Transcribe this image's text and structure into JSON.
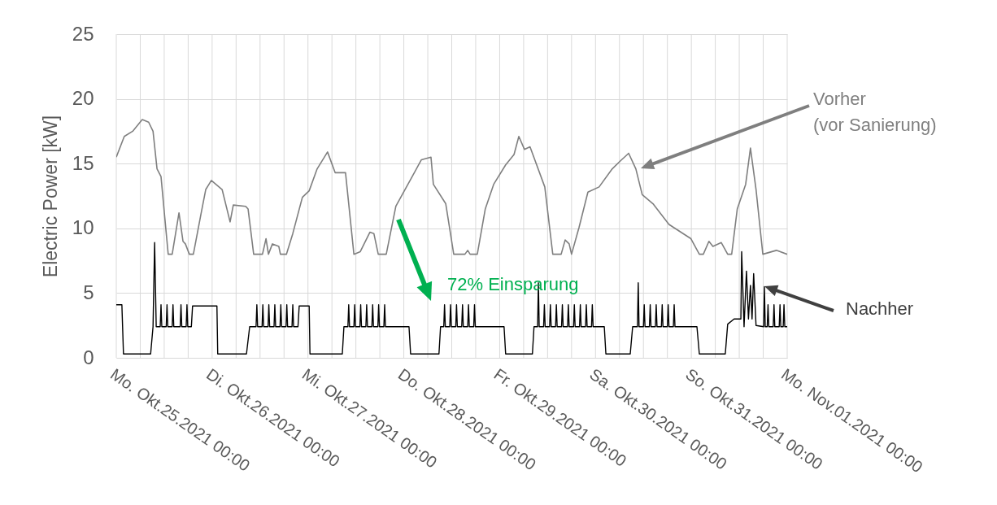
{
  "chart_data": {
    "type": "line",
    "ylabel": "Electric Power [kW]",
    "xlim": [
      "2021-10-25T00:00",
      "2021-11-01T00:00"
    ],
    "ylim": [
      0,
      25
    ],
    "yticks": [
      0,
      5,
      10,
      15,
      20,
      25
    ],
    "xticks": [
      {
        "value": "2021-10-25T00:00",
        "label": "Mo. Okt.25.2021 00:00"
      },
      {
        "value": "2021-10-25T06:00",
        "label": null
      },
      {
        "value": "2021-10-25T12:00",
        "label": null
      },
      {
        "value": "2021-10-25T18:00",
        "label": null
      },
      {
        "value": "2021-10-26T00:00",
        "label": "Di. Okt.26.2021 00:00"
      },
      {
        "value": "2021-10-26T06:00",
        "label": null
      },
      {
        "value": "2021-10-26T12:00",
        "label": null
      },
      {
        "value": "2021-10-26T18:00",
        "label": null
      },
      {
        "value": "2021-10-27T00:00",
        "label": "Mi. Okt.27.2021 00:00"
      },
      {
        "value": "2021-10-27T06:00",
        "label": null
      },
      {
        "value": "2021-10-27T12:00",
        "label": null
      },
      {
        "value": "2021-10-27T18:00",
        "label": null
      },
      {
        "value": "2021-10-28T00:00",
        "label": "Do. Okt.28.2021 00:00"
      },
      {
        "value": "2021-10-28T06:00",
        "label": null
      },
      {
        "value": "2021-10-28T12:00",
        "label": null
      },
      {
        "value": "2021-10-28T18:00",
        "label": null
      },
      {
        "value": "2021-10-29T00:00",
        "label": "Fr. Okt.29.2021 00:00"
      },
      {
        "value": "2021-10-29T06:00",
        "label": null
      },
      {
        "value": "2021-10-29T12:00",
        "label": null
      },
      {
        "value": "2021-10-29T18:00",
        "label": null
      },
      {
        "value": "2021-10-30T00:00",
        "label": "Sa. Okt.30.2021 00:00"
      },
      {
        "value": "2021-10-30T06:00",
        "label": null
      },
      {
        "value": "2021-10-30T12:00",
        "label": null
      },
      {
        "value": "2021-10-30T18:00",
        "label": null
      },
      {
        "value": "2021-10-31T00:00",
        "label": "So. Okt.31.2021 00:00"
      },
      {
        "value": "2021-10-31T06:00",
        "label": null
      },
      {
        "value": "2021-10-31T12:00",
        "label": null
      },
      {
        "value": "2021-10-31T18:00",
        "label": null
      },
      {
        "value": "2021-11-01T00:00",
        "label": "Mo. Nov.01.2021 00:00"
      }
    ],
    "grid": true,
    "marker": "none",
    "line_style": "solid",
    "series": [
      {
        "color": "#7f7f7f",
        "x": [
          "2021-10-25T00:00",
          "2021-10-25T02:00",
          "2021-10-25T04:06",
          "2021-10-25T06:30",
          "2021-10-25T08:06",
          "2021-10-25T09:12",
          "2021-10-25T10:12",
          "2021-10-25T11:12",
          "2021-10-25T12:00",
          "2021-10-25T13:00",
          "2021-10-25T14:00",
          "2021-10-25T15:42",
          "2021-10-25T16:42",
          "2021-10-25T17:18",
          "2021-10-25T18:18",
          "2021-10-25T19:18",
          "2021-10-25T21:12",
          "2021-10-25T22:24",
          "2021-10-25T23:48",
          "2021-10-26T02:30",
          "2021-10-26T04:30",
          "2021-10-26T05:18",
          "2021-10-26T08:24",
          "2021-10-26T09:00",
          "2021-10-26T10:24",
          "2021-10-26T12:36",
          "2021-10-26T13:30",
          "2021-10-26T14:06",
          "2021-10-26T15:06",
          "2021-10-26T16:42",
          "2021-10-26T17:06",
          "2021-10-26T18:36",
          "2021-10-26T20:12",
          "2021-10-26T22:36",
          "2021-10-27T00:18",
          "2021-10-27T02:18",
          "2021-10-27T04:54",
          "2021-10-27T06:48",
          "2021-10-27T09:24",
          "2021-10-27T11:30",
          "2021-10-27T13:06",
          "2021-10-27T15:30",
          "2021-10-27T16:30",
          "2021-10-27T17:36",
          "2021-10-27T19:36",
          "2021-10-27T22:00",
          "2021-10-28T00:18",
          "2021-10-28T02:06",
          "2021-10-28T04:24",
          "2021-10-28T06:48",
          "2021-10-28T07:24",
          "2021-10-28T10:30",
          "2021-10-28T12:30",
          "2021-10-28T15:18",
          "2021-10-28T16:00",
          "2021-10-28T16:36",
          "2021-10-28T18:24",
          "2021-10-28T20:24",
          "2021-10-28T22:30",
          "2021-10-29T01:30",
          "2021-10-29T03:36",
          "2021-10-29T04:48",
          "2021-10-29T06:12",
          "2021-10-29T07:36",
          "2021-10-29T11:18",
          "2021-10-29T13:18",
          "2021-10-29T15:24",
          "2021-10-29T16:24",
          "2021-10-29T17:24",
          "2021-10-29T18:00",
          "2021-10-29T19:54",
          "2021-10-29T22:06",
          "2021-10-30T00:54",
          "2021-10-30T04:12",
          "2021-10-30T06:12",
          "2021-10-30T08:18",
          "2021-10-30T10:06",
          "2021-10-30T11:42",
          "2021-10-30T14:24",
          "2021-10-30T18:24",
          "2021-10-30T23:54",
          "2021-10-31T02:00",
          "2021-10-31T03:00",
          "2021-10-31T04:24",
          "2021-10-31T05:24",
          "2021-10-31T07:30",
          "2021-10-31T09:06",
          "2021-10-31T10:06",
          "2021-10-31T11:30",
          "2021-10-31T13:36",
          "2021-10-31T14:48",
          "2021-10-31T16:12",
          "2021-10-31T17:54",
          "2021-10-31T21:18",
          "2021-11-01T00:00"
        ],
        "values": [
          15.5,
          17.1,
          17.5,
          18.4,
          18.2,
          17.5,
          14.6,
          14.0,
          11.3,
          8.0,
          8.0,
          11.2,
          9.0,
          8.8,
          8.0,
          8.0,
          11.1,
          13.0,
          13.7,
          13.0,
          10.5,
          11.8,
          11.7,
          11.5,
          8.0,
          8.0,
          9.2,
          8.0,
          8.8,
          8.6,
          8.0,
          8.0,
          9.6,
          12.4,
          12.9,
          14.6,
          15.9,
          14.3,
          14.3,
          8.0,
          8.2,
          9.7,
          9.6,
          8.0,
          8.0,
          11.7,
          13.0,
          14.0,
          15.3,
          15.5,
          13.4,
          11.9,
          8.0,
          8.0,
          8.3,
          8.0,
          8.0,
          11.5,
          13.4,
          14.9,
          15.7,
          17.1,
          16.1,
          16.3,
          13.2,
          8.0,
          8.0,
          9.1,
          8.8,
          8.0,
          10.1,
          12.8,
          13.2,
          14.6,
          15.2,
          15.8,
          14.6,
          12.6,
          11.9,
          10.3,
          9.2,
          8.0,
          8.0,
          9.0,
          8.6,
          8.9,
          8.0,
          8.0,
          11.5,
          13.4,
          16.2,
          13.0,
          8.0,
          8.3,
          8.0
        ]
      },
      {
        "color": "#000000",
        "x": [
          "2021-10-25T00:00",
          "2021-10-25T01:24",
          "2021-10-25T01:48",
          "2021-10-25T08:36",
          "2021-10-25T09:12",
          "2021-10-25T09:36",
          "2021-10-25T10:00",
          "2021-10-25T11:00",
          "2021-10-25T11:12",
          "2021-10-25T11:24",
          "2021-10-25T12:30",
          "2021-10-25T12:42",
          "2021-10-25T12:54",
          "2021-10-25T14:00",
          "2021-10-25T14:12",
          "2021-10-25T14:24",
          "2021-10-25T16:00",
          "2021-10-25T16:12",
          "2021-10-25T16:24",
          "2021-10-25T17:30",
          "2021-10-25T17:42",
          "2021-10-25T17:54",
          "2021-10-25T18:48",
          "2021-10-25T19:06",
          "2021-10-26T01:12",
          "2021-10-26T01:24",
          "2021-10-26T08:36",
          "2021-10-26T09:24",
          "2021-10-26T11:00",
          "2021-10-26T11:12",
          "2021-10-26T11:24",
          "2021-10-26T12:30",
          "2021-10-26T12:42",
          "2021-10-26T12:54",
          "2021-10-26T14:00",
          "2021-10-26T14:12",
          "2021-10-26T14:24",
          "2021-10-26T15:30",
          "2021-10-26T15:42",
          "2021-10-26T15:54",
          "2021-10-26T17:00",
          "2021-10-26T17:12",
          "2021-10-26T17:24",
          "2021-10-26T18:30",
          "2021-10-26T18:42",
          "2021-10-26T18:54",
          "2021-10-26T20:00",
          "2021-10-26T20:12",
          "2021-10-26T20:24",
          "2021-10-26T21:30",
          "2021-10-26T21:48",
          "2021-10-27T00:18",
          "2021-10-27T00:30",
          "2021-10-27T08:36",
          "2021-10-27T09:00",
          "2021-10-27T10:00",
          "2021-10-27T10:12",
          "2021-10-27T10:24",
          "2021-10-27T11:30",
          "2021-10-27T11:42",
          "2021-10-27T11:54",
          "2021-10-27T13:00",
          "2021-10-27T13:12",
          "2021-10-27T13:24",
          "2021-10-27T14:30",
          "2021-10-27T14:42",
          "2021-10-27T14:54",
          "2021-10-27T16:00",
          "2021-10-27T16:12",
          "2021-10-27T16:24",
          "2021-10-27T17:30",
          "2021-10-27T17:42",
          "2021-10-27T17:54",
          "2021-10-27T19:00",
          "2021-10-27T19:12",
          "2021-10-27T19:24",
          "2021-10-28T01:18",
          "2021-10-28T01:42",
          "2021-10-28T08:48",
          "2021-10-28T09:12",
          "2021-10-28T10:00",
          "2021-10-28T10:12",
          "2021-10-28T10:24",
          "2021-10-28T11:30",
          "2021-10-28T11:42",
          "2021-10-28T11:54",
          "2021-10-28T13:00",
          "2021-10-28T13:12",
          "2021-10-28T13:24",
          "2021-10-28T14:30",
          "2021-10-28T14:42",
          "2021-10-28T14:54",
          "2021-10-28T16:00",
          "2021-10-28T16:12",
          "2021-10-28T16:24",
          "2021-10-28T17:30",
          "2021-10-28T17:42",
          "2021-10-28T17:54",
          "2021-10-29T01:06",
          "2021-10-29T01:30",
          "2021-10-29T08:12",
          "2021-10-29T08:36",
          "2021-10-29T09:30",
          "2021-10-29T09:42",
          "2021-10-29T09:54",
          "2021-10-29T11:00",
          "2021-10-29T11:12",
          "2021-10-29T11:24",
          "2021-10-29T12:30",
          "2021-10-29T12:42",
          "2021-10-29T12:54",
          "2021-10-29T14:00",
          "2021-10-29T14:12",
          "2021-10-29T14:24",
          "2021-10-29T15:30",
          "2021-10-29T15:42",
          "2021-10-29T15:54",
          "2021-10-29T17:00",
          "2021-10-29T17:12",
          "2021-10-29T17:24",
          "2021-10-29T18:30",
          "2021-10-29T18:42",
          "2021-10-29T18:54",
          "2021-10-29T20:00",
          "2021-10-29T20:12",
          "2021-10-29T20:24",
          "2021-10-29T21:30",
          "2021-10-29T21:42",
          "2021-10-29T21:54",
          "2021-10-29T23:00",
          "2021-10-29T23:12",
          "2021-10-29T23:24",
          "2021-10-30T02:12",
          "2021-10-30T02:36",
          "2021-10-30T08:42",
          "2021-10-30T09:18",
          "2021-10-30T10:30",
          "2021-10-30T10:42",
          "2021-10-30T10:54",
          "2021-10-30T12:00",
          "2021-10-30T12:12",
          "2021-10-30T12:24",
          "2021-10-30T13:30",
          "2021-10-30T13:42",
          "2021-10-30T13:54",
          "2021-10-30T15:00",
          "2021-10-30T15:12",
          "2021-10-30T15:24",
          "2021-10-30T16:30",
          "2021-10-30T16:42",
          "2021-10-30T16:54",
          "2021-10-30T18:00",
          "2021-10-30T18:12",
          "2021-10-30T18:24",
          "2021-10-30T19:30",
          "2021-10-30T19:42",
          "2021-10-30T19:54",
          "2021-10-31T01:24",
          "2021-10-31T02:00",
          "2021-10-31T08:30",
          "2021-10-31T09:06",
          "2021-10-31T10:42",
          "2021-10-31T12:24",
          "2021-10-31T12:36",
          "2021-10-31T13:12",
          "2021-10-31T13:48",
          "2021-10-31T14:18",
          "2021-10-31T14:48",
          "2021-10-31T15:12",
          "2021-10-31T15:36",
          "2021-10-31T16:12",
          "2021-10-31T18:06",
          "2021-10-31T18:18",
          "2021-10-31T18:30",
          "2021-10-31T19:00",
          "2021-10-31T19:12",
          "2021-10-31T19:24",
          "2021-10-31T20:30",
          "2021-10-31T20:42",
          "2021-10-31T20:54",
          "2021-10-31T22:00",
          "2021-10-31T22:12",
          "2021-10-31T22:24",
          "2021-10-31T23:00",
          "2021-10-31T23:12",
          "2021-10-31T23:24",
          "2021-11-01T00:00"
        ],
        "values": [
          4.1,
          4.1,
          0.3,
          0.3,
          2.4,
          8.9,
          2.4,
          2.4,
          4.1,
          2.4,
          2.4,
          4.1,
          2.4,
          2.4,
          4.1,
          2.4,
          2.4,
          4.1,
          2.4,
          2.4,
          4.1,
          2.4,
          2.4,
          4.0,
          4.0,
          0.3,
          0.3,
          2.4,
          2.4,
          4.1,
          2.4,
          2.4,
          4.1,
          2.4,
          2.4,
          4.1,
          2.4,
          2.4,
          4.1,
          2.4,
          2.4,
          4.1,
          2.4,
          2.4,
          4.1,
          2.4,
          2.4,
          4.1,
          2.4,
          2.4,
          4.0,
          4.0,
          0.3,
          0.3,
          2.4,
          2.4,
          4.1,
          2.4,
          2.4,
          4.1,
          2.4,
          2.4,
          4.1,
          2.4,
          2.4,
          4.1,
          2.4,
          2.4,
          4.1,
          2.4,
          2.4,
          4.1,
          2.4,
          2.4,
          4.1,
          2.4,
          2.4,
          0.3,
          0.3,
          2.4,
          2.4,
          4.1,
          2.4,
          2.4,
          4.1,
          2.4,
          2.4,
          4.1,
          2.4,
          2.4,
          4.1,
          2.4,
          2.4,
          4.1,
          2.4,
          2.4,
          4.1,
          2.4,
          2.4,
          0.3,
          0.3,
          2.4,
          2.4,
          5.8,
          2.4,
          2.4,
          4.1,
          2.4,
          2.4,
          4.1,
          2.4,
          2.4,
          4.1,
          2.4,
          2.4,
          4.1,
          2.4,
          2.4,
          4.1,
          2.4,
          2.4,
          4.1,
          2.4,
          2.4,
          4.1,
          2.4,
          2.4,
          4.1,
          2.4,
          2.4,
          4.1,
          2.4,
          2.4,
          0.3,
          0.3,
          2.4,
          2.4,
          5.8,
          2.4,
          2.4,
          4.1,
          2.4,
          2.4,
          4.1,
          2.4,
          2.4,
          4.1,
          2.4,
          2.4,
          4.1,
          2.4,
          2.4,
          4.1,
          2.4,
          2.4,
          4.1,
          2.4,
          2.4,
          0.3,
          0.3,
          2.6,
          3.0,
          3.0,
          8.2,
          2.4,
          6.7,
          3.0,
          5.6,
          3.0,
          6.5,
          2.5,
          2.4,
          5.5,
          2.4,
          2.4,
          4.1,
          2.4,
          2.4,
          4.1,
          2.4,
          2.4,
          4.1,
          2.4,
          2.4,
          4.1,
          2.4,
          2.4
        ]
      }
    ],
    "annotations": [
      "Vorher\n(vor Sanierung)",
      "Nachher",
      "72% Einsparung"
    ]
  }
}
